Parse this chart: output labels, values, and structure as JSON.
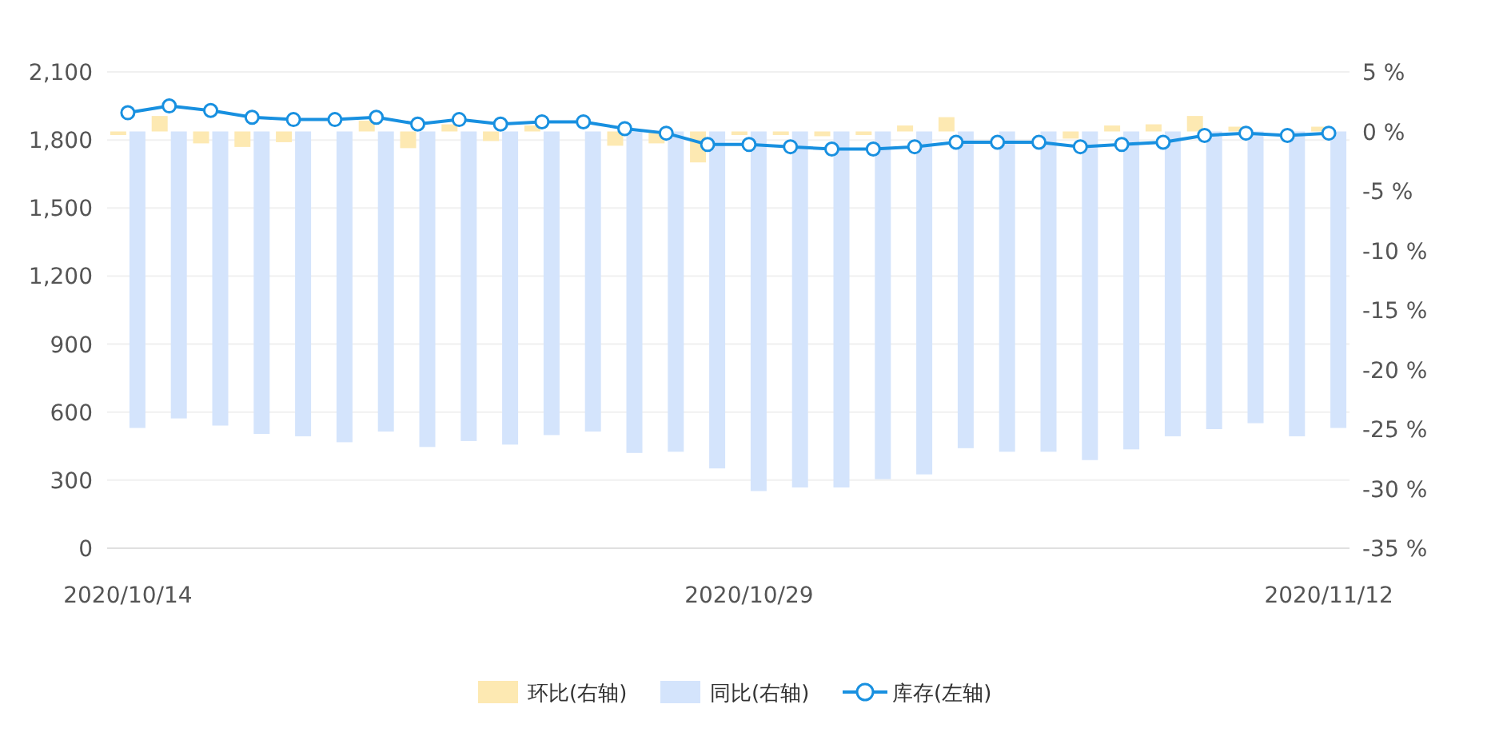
{
  "chart_data": {
    "type": "bar",
    "categories": [
      "2020/10/14",
      null,
      null,
      null,
      null,
      null,
      null,
      null,
      null,
      null,
      null,
      null,
      null,
      null,
      null,
      "2020/10/29",
      null,
      null,
      null,
      null,
      null,
      null,
      null,
      null,
      null,
      null,
      null,
      null,
      null,
      "2020/11/12"
    ],
    "series": [
      {
        "name": "环比(右轴)",
        "axis": "y2",
        "color": "#fde9b2",
        "values": [
          -0.3,
          1.3,
          -1.0,
          -1.3,
          -0.9,
          null,
          0.9,
          -1.4,
          0.6,
          -0.8,
          0.5,
          null,
          -1.2,
          -1.0,
          -2.6,
          -0.3,
          -0.3,
          -0.4,
          -0.3,
          0.5,
          1.2,
          0.0,
          0.0,
          -0.6,
          0.5,
          0.6,
          1.3,
          0.4,
          0.0,
          0.4
        ]
      },
      {
        "name": "同比(右轴)",
        "axis": "y2",
        "color": "#d4e4fc",
        "values": [
          -24.9,
          -24.1,
          -24.7,
          -25.4,
          -25.6,
          -26.1,
          -25.2,
          -26.5,
          -26.0,
          -26.3,
          -25.5,
          -25.2,
          -27.0,
          -26.9,
          -28.3,
          -30.2,
          -29.9,
          -29.9,
          -29.2,
          -28.8,
          -26.6,
          -26.9,
          -26.9,
          -27.6,
          -26.7,
          -25.6,
          -25.0,
          -24.5,
          -25.6,
          -24.9
        ]
      },
      {
        "name": "库存(左轴)",
        "type": "line",
        "axis": "y",
        "color": "#1890e0",
        "values": [
          1920,
          1950,
          1930,
          1900,
          1890,
          1890,
          1900,
          1870,
          1890,
          1870,
          1880,
          1880,
          1850,
          1830,
          1780,
          1780,
          1770,
          1760,
          1760,
          1770,
          1790,
          1790,
          1790,
          1770,
          1780,
          1790,
          1820,
          1830,
          1820,
          1830
        ]
      }
    ],
    "ylim": [
      0,
      2100
    ],
    "yticks": [
      0,
      300,
      600,
      900,
      {
        "value": 1200,
        "label": "1,200"
      },
      {
        "value": 1500,
        "label": "1,500"
      },
      {
        "value": 1800,
        "label": "1,800"
      },
      {
        "value": 2100,
        "label": "2,100"
      }
    ],
    "y2lim": [
      -35,
      5
    ],
    "y2ticks": [
      {
        "value": 5,
        "label": "5 %"
      },
      {
        "value": 0,
        "label": "0 %"
      },
      {
        "value": -5,
        "label": "-5 %"
      },
      {
        "value": -10,
        "label": "-10 %"
      },
      {
        "value": -15,
        "label": "-15 %"
      },
      {
        "value": -20,
        "label": "-20 %"
      },
      {
        "value": -25,
        "label": "-25 %"
      },
      {
        "value": -30,
        "label": "-30 %"
      },
      {
        "value": -35,
        "label": "-35 %"
      }
    ],
    "marker": "circle",
    "grid": "y",
    "legend": "bottom"
  }
}
